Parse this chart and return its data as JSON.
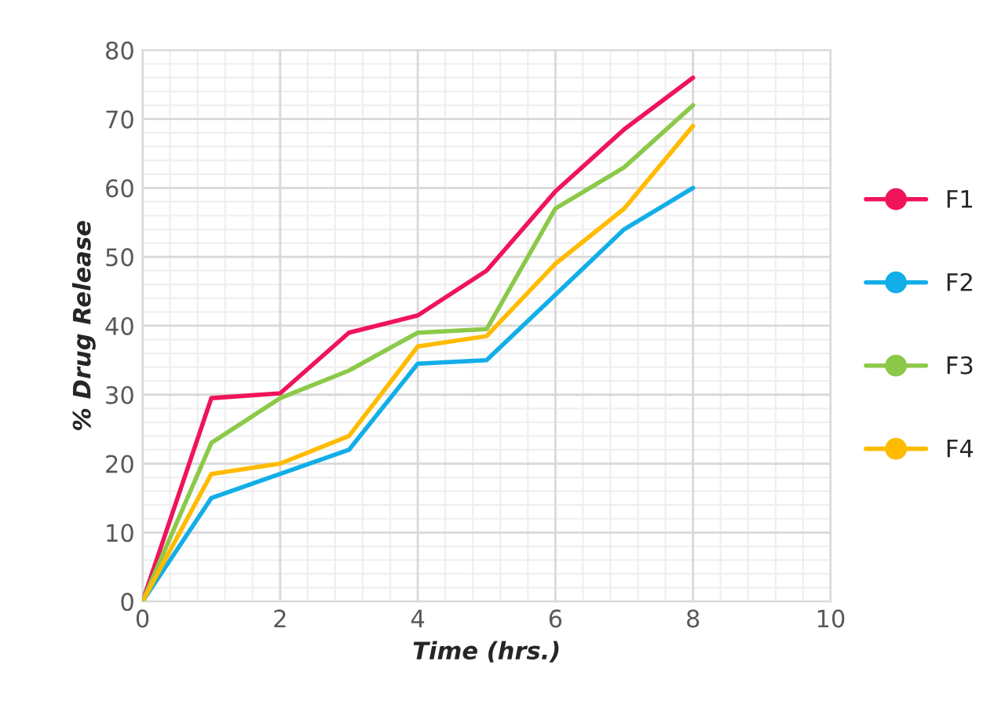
{
  "chart_data": {
    "type": "line",
    "xlabel": "Time (hrs.)",
    "ylabel": "% Drug Release",
    "x": [
      0,
      1,
      2,
      3,
      4,
      5,
      6,
      7,
      8
    ],
    "series": [
      {
        "name": "F1",
        "color": "#f0145a",
        "values": [
          0,
          29.5,
          30.2,
          39,
          41.5,
          48,
          59.5,
          68.5,
          76
        ]
      },
      {
        "name": "F2",
        "color": "#12aee8",
        "values": [
          0,
          15,
          18.5,
          22,
          34.5,
          35,
          44.5,
          54,
          60
        ]
      },
      {
        "name": "F3",
        "color": "#8cc94a",
        "values": [
          0,
          23,
          29.5,
          33.5,
          39,
          39.5,
          57,
          63,
          72
        ]
      },
      {
        "name": "F4",
        "color": "#ffbb00",
        "values": [
          0,
          18.5,
          20,
          24,
          37,
          38.5,
          49,
          57,
          69
        ]
      }
    ],
    "xlim": [
      0,
      10
    ],
    "xticks": [
      0,
      2,
      4,
      6,
      8,
      10
    ],
    "ylim": [
      0,
      80
    ],
    "yticks": [
      0,
      10,
      20,
      30,
      40,
      50,
      60,
      70,
      80
    ],
    "grid": true,
    "legend": "right",
    "marker": "none",
    "line_style": "solid"
  }
}
